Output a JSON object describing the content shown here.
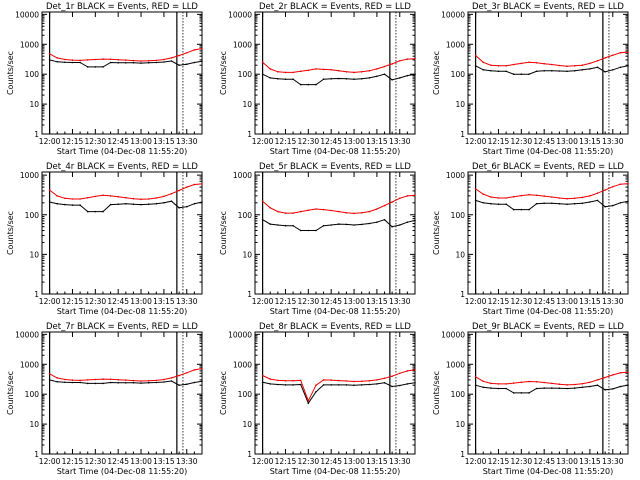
{
  "colors": {
    "events": "#000000",
    "lld": "#ee0000",
    "axis": "#000000",
    "background": "#ffffff"
  },
  "common": {
    "xlabel": "Start Time (04-Dec-08 11:55:20)",
    "ylabel": "Counts/sec",
    "xticks": [
      "12:00",
      "12:15",
      "12:30",
      "12:45",
      "13:00",
      "13:15",
      "13:30"
    ],
    "yticks": [
      "1",
      "10",
      "100",
      "1000",
      "10000"
    ]
  },
  "chart_data": [
    {
      "type": "line",
      "title": "Det_1r BLACK = Events, RED = LLD",
      "ylim": [
        1,
        12000
      ],
      "ylog": true,
      "x_minutes": [
        0,
        5,
        10,
        15,
        20,
        25,
        30,
        35,
        40,
        45,
        50,
        55,
        60,
        65,
        70,
        75,
        80,
        85,
        90,
        95,
        100
      ],
      "series": [
        {
          "key": "events",
          "values": [
            300,
            260,
            250,
            245,
            245,
            175,
            175,
            175,
            245,
            240,
            240,
            240,
            235,
            240,
            245,
            255,
            275,
            200,
            215,
            245,
            270
          ]
        },
        {
          "key": "lld",
          "values": [
            480,
            350,
            310,
            295,
            290,
            300,
            310,
            320,
            315,
            305,
            295,
            285,
            275,
            280,
            290,
            310,
            350,
            420,
            520,
            650,
            720
          ]
        }
      ]
    },
    {
      "type": "line",
      "title": "Det_2r BLACK = Events, RED = LLD",
      "ylim": [
        1,
        12000
      ],
      "ylog": true,
      "x_minutes": [
        0,
        5,
        10,
        15,
        20,
        25,
        30,
        35,
        40,
        45,
        50,
        55,
        60,
        65,
        70,
        75,
        80,
        85,
        90,
        95,
        100
      ],
      "series": [
        {
          "key": "events",
          "values": [
            100,
            75,
            70,
            68,
            68,
            45,
            45,
            45,
            68,
            70,
            72,
            70,
            68,
            70,
            75,
            85,
            100,
            65,
            75,
            90,
            100
          ]
        },
        {
          "key": "lld",
          "values": [
            250,
            150,
            120,
            115,
            115,
            125,
            135,
            150,
            145,
            140,
            130,
            120,
            115,
            120,
            130,
            150,
            180,
            220,
            280,
            320,
            330
          ]
        }
      ]
    },
    {
      "type": "line",
      "title": "Det_3r BLACK = Events, RED = LLD",
      "ylim": [
        1,
        12000
      ],
      "ylog": true,
      "x_minutes": [
        0,
        5,
        10,
        15,
        20,
        25,
        30,
        35,
        40,
        45,
        50,
        55,
        60,
        65,
        70,
        75,
        80,
        85,
        90,
        95,
        100
      ],
      "series": [
        {
          "key": "events",
          "values": [
            190,
            140,
            130,
            125,
            125,
            100,
            100,
            100,
            125,
            130,
            130,
            128,
            125,
            130,
            140,
            150,
            170,
            120,
            140,
            170,
            190
          ]
        },
        {
          "key": "lld",
          "values": [
            420,
            250,
            200,
            190,
            190,
            210,
            230,
            250,
            240,
            225,
            210,
            195,
            185,
            190,
            200,
            230,
            280,
            350,
            430,
            520,
            550
          ]
        }
      ]
    },
    {
      "type": "line",
      "title": "Det_4r BLACK = Events, RED = LLD",
      "ylim": [
        1,
        1200
      ],
      "ylog": true,
      "x_minutes": [
        0,
        5,
        10,
        15,
        20,
        25,
        30,
        35,
        40,
        45,
        50,
        55,
        60,
        65,
        70,
        75,
        80,
        85,
        90,
        95,
        100
      ],
      "series": [
        {
          "key": "events",
          "values": [
            210,
            190,
            180,
            175,
            175,
            120,
            120,
            120,
            180,
            185,
            190,
            185,
            180,
            185,
            190,
            200,
            220,
            150,
            160,
            190,
            210
          ]
        },
        {
          "key": "lld",
          "values": [
            420,
            300,
            260,
            250,
            250,
            270,
            290,
            310,
            300,
            285,
            270,
            255,
            245,
            250,
            265,
            290,
            340,
            410,
            500,
            580,
            600
          ]
        }
      ]
    },
    {
      "type": "line",
      "title": "Det_5r BLACK = Events, RED = LLD",
      "ylim": [
        1,
        1200
      ],
      "ylog": true,
      "x_minutes": [
        0,
        5,
        10,
        15,
        20,
        25,
        30,
        35,
        40,
        45,
        50,
        55,
        60,
        65,
        70,
        75,
        80,
        85,
        90,
        95,
        100
      ],
      "series": [
        {
          "key": "events",
          "values": [
            75,
            58,
            55,
            53,
            53,
            40,
            40,
            40,
            53,
            55,
            58,
            57,
            55,
            57,
            60,
            65,
            75,
            50,
            55,
            65,
            72
          ]
        },
        {
          "key": "lld",
          "values": [
            220,
            150,
            120,
            110,
            110,
            120,
            130,
            140,
            135,
            128,
            120,
            112,
            108,
            112,
            120,
            140,
            170,
            210,
            260,
            300,
            310
          ]
        }
      ]
    },
    {
      "type": "line",
      "title": "Det_6r BLACK = Events, RED = LLD",
      "ylim": [
        1,
        1200
      ],
      "ylog": true,
      "x_minutes": [
        0,
        5,
        10,
        15,
        20,
        25,
        30,
        35,
        40,
        45,
        50,
        55,
        60,
        65,
        70,
        75,
        80,
        85,
        90,
        95,
        100
      ],
      "series": [
        {
          "key": "events",
          "values": [
            230,
            200,
            190,
            185,
            185,
            135,
            135,
            135,
            190,
            195,
            195,
            190,
            185,
            190,
            195,
            210,
            230,
            160,
            170,
            200,
            220
          ]
        },
        {
          "key": "lld",
          "values": [
            450,
            330,
            280,
            265,
            265,
            285,
            305,
            320,
            310,
            295,
            280,
            265,
            255,
            260,
            275,
            300,
            350,
            420,
            510,
            590,
            610
          ]
        }
      ]
    },
    {
      "type": "line",
      "title": "Det_7r BLACK = Events, RED = LLD",
      "ylim": [
        1,
        12000
      ],
      "ylog": true,
      "x_minutes": [
        0,
        5,
        10,
        15,
        20,
        25,
        30,
        35,
        40,
        45,
        50,
        55,
        60,
        65,
        70,
        75,
        80,
        85,
        90,
        95,
        100
      ],
      "series": [
        {
          "key": "events",
          "values": [
            300,
            260,
            250,
            245,
            245,
            230,
            230,
            230,
            245,
            240,
            240,
            240,
            235,
            240,
            245,
            255,
            275,
            200,
            215,
            245,
            270
          ]
        },
        {
          "key": "lld",
          "values": [
            480,
            350,
            310,
            295,
            290,
            300,
            310,
            320,
            315,
            305,
            295,
            285,
            275,
            280,
            290,
            310,
            350,
            420,
            520,
            650,
            720
          ]
        }
      ]
    },
    {
      "type": "line",
      "title": "Det_8r BLACK = Events, RED = LLD",
      "ylim": [
        1,
        12000
      ],
      "ylog": true,
      "x_minutes": [
        0,
        5,
        10,
        15,
        20,
        25,
        30,
        35,
        40,
        45,
        50,
        55,
        60,
        65,
        70,
        75,
        80,
        85,
        90,
        95,
        100
      ],
      "series": [
        {
          "key": "events",
          "values": [
            250,
            220,
            210,
            205,
            205,
            210,
            50,
            120,
            205,
            205,
            205,
            205,
            200,
            205,
            210,
            220,
            240,
            180,
            195,
            220,
            240
          ]
        },
        {
          "key": "lld",
          "values": [
            420,
            320,
            290,
            280,
            280,
            290,
            60,
            200,
            300,
            295,
            285,
            275,
            265,
            270,
            280,
            300,
            340,
            400,
            500,
            600,
            650
          ]
        }
      ]
    },
    {
      "type": "line",
      "title": "Det_9r BLACK = Events, RED = LLD",
      "ylim": [
        1,
        12000
      ],
      "ylog": true,
      "x_minutes": [
        0,
        5,
        10,
        15,
        20,
        25,
        30,
        35,
        40,
        45,
        50,
        55,
        60,
        65,
        70,
        75,
        80,
        85,
        90,
        95,
        100
      ],
      "series": [
        {
          "key": "events",
          "values": [
            200,
            170,
            160,
            155,
            155,
            110,
            110,
            110,
            155,
            160,
            160,
            158,
            155,
            160,
            170,
            180,
            200,
            140,
            150,
            180,
            200
          ]
        },
        {
          "key": "lld",
          "values": [
            380,
            270,
            230,
            220,
            220,
            235,
            250,
            265,
            260,
            245,
            230,
            215,
            205,
            210,
            225,
            250,
            300,
            360,
            440,
            520,
            540
          ]
        }
      ]
    }
  ]
}
